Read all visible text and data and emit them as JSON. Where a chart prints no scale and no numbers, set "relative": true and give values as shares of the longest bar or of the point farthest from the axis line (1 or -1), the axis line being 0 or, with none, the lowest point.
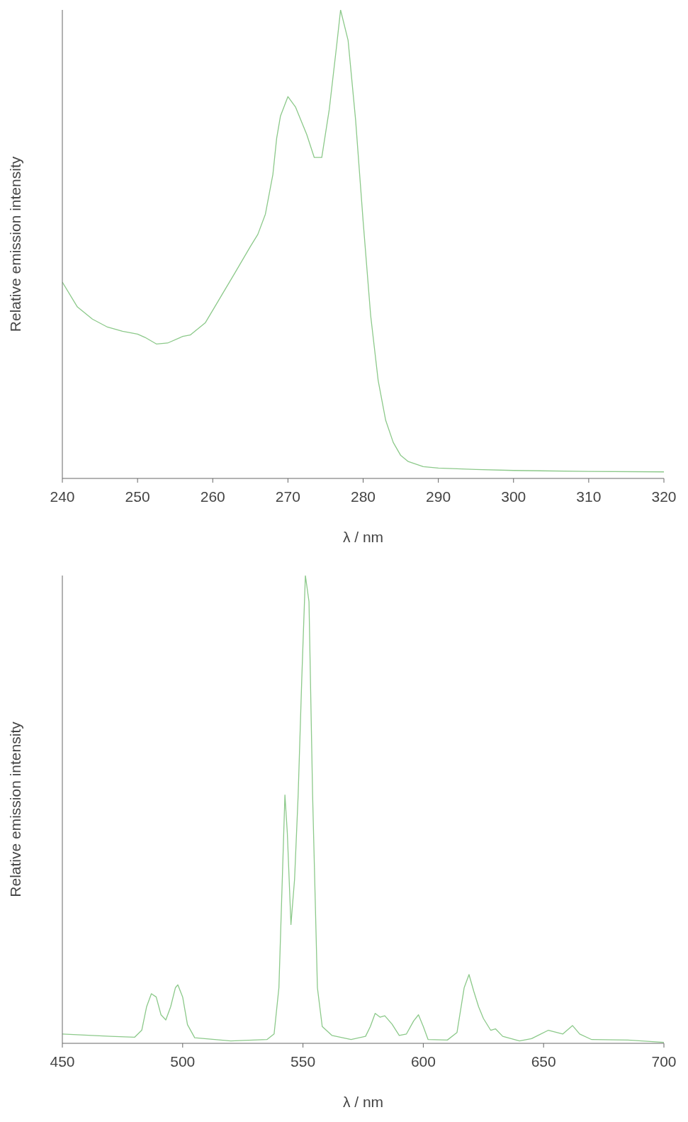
{
  "chart_data": [
    {
      "type": "line",
      "xlabel": "λ / nm",
      "ylabel": "Relative emission intensity",
      "relative": true,
      "xlim": [
        240,
        320
      ],
      "xticks": [
        240,
        250,
        260,
        270,
        280,
        290,
        300,
        310,
        320
      ],
      "x": [
        240,
        242,
        244,
        246,
        248,
        250,
        251,
        252.5,
        254,
        256,
        257,
        259,
        261,
        263,
        265,
        266,
        267,
        268,
        268.5,
        269,
        270,
        271,
        272.5,
        273.5,
        274.5,
        275.5,
        276.5,
        277,
        278,
        279,
        280,
        281,
        282,
        283,
        284,
        285,
        286,
        288,
        290,
        295,
        300,
        310,
        320
      ],
      "series": [
        {
          "color": "#8cc98a",
          "values": [
            0.419,
            0.366,
            0.34,
            0.323,
            0.314,
            0.308,
            0.301,
            0.287,
            0.289,
            0.303,
            0.306,
            0.332,
            0.386,
            0.44,
            0.495,
            0.521,
            0.564,
            0.649,
            0.726,
            0.773,
            0.815,
            0.793,
            0.734,
            0.685,
            0.685,
            0.788,
            0.927,
            1,
            0.935,
            0.765,
            0.549,
            0.348,
            0.209,
            0.124,
            0.077,
            0.049,
            0.036,
            0.025,
            0.022,
            0.019,
            0.017,
            0.015,
            0.014
          ]
        }
      ]
    },
    {
      "type": "line",
      "xlabel": "λ / nm",
      "ylabel": "Relative emission intensity",
      "relative": true,
      "xlim": [
        450,
        700
      ],
      "xticks": [
        450,
        500,
        550,
        600,
        650,
        700
      ],
      "x": [
        450,
        470,
        480,
        483,
        485,
        487,
        489,
        491,
        493,
        495,
        497,
        498,
        500,
        502,
        505,
        520,
        535,
        538,
        540,
        541.5,
        542.5,
        543.5,
        545,
        546.5,
        548,
        549.5,
        551,
        552.5,
        554,
        556,
        558,
        562,
        570,
        576,
        578,
        580,
        582,
        584,
        587,
        590,
        593,
        596,
        598,
        600,
        602,
        610,
        614,
        617,
        619,
        621,
        623,
        625,
        628,
        630,
        633,
        640,
        645,
        652,
        658,
        662,
        665,
        670,
        685,
        700
      ],
      "series": [
        {
          "color": "#8cc98a",
          "values": [
            0.02,
            0.015,
            0.013,
            0.028,
            0.078,
            0.106,
            0.099,
            0.061,
            0.05,
            0.078,
            0.119,
            0.125,
            0.099,
            0.04,
            0.012,
            0.005,
            0.008,
            0.02,
            0.119,
            0.366,
            0.531,
            0.449,
            0.254,
            0.35,
            0.531,
            0.779,
            1,
            0.944,
            0.531,
            0.119,
            0.036,
            0.017,
            0.008,
            0.015,
            0.036,
            0.064,
            0.056,
            0.059,
            0.041,
            0.017,
            0.02,
            0.048,
            0.061,
            0.036,
            0.008,
            0.007,
            0.023,
            0.119,
            0.147,
            0.111,
            0.078,
            0.053,
            0.028,
            0.031,
            0.015,
            0.005,
            0.01,
            0.028,
            0.02,
            0.038,
            0.02,
            0.008,
            0.007,
            0.002
          ]
        }
      ]
    }
  ]
}
